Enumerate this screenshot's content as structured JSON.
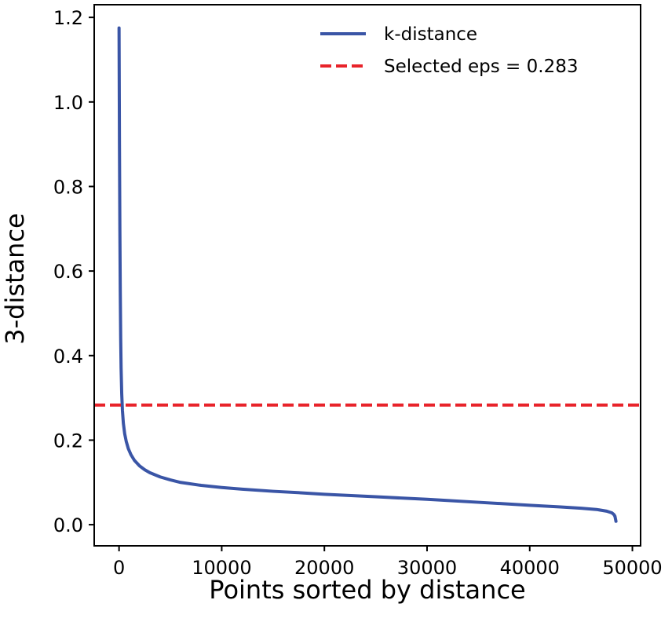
{
  "chart_data": {
    "type": "line",
    "title": "",
    "xlabel": "Points sorted by distance",
    "ylabel": "3-distance",
    "xlim": [
      -2420,
      50800
    ],
    "ylim": [
      -0.05,
      1.23
    ],
    "x_ticks": [
      0,
      10000,
      20000,
      30000,
      40000,
      50000
    ],
    "x_tick_labels": [
      "0",
      "10000",
      "20000",
      "30000",
      "40000",
      "50000"
    ],
    "y_ticks": [
      0.0,
      0.2,
      0.4,
      0.6,
      0.8,
      1.0,
      1.2
    ],
    "y_tick_labels": [
      "0.0",
      "0.2",
      "0.4",
      "0.6",
      "0.8",
      "1.0",
      "1.2"
    ],
    "grid": false,
    "legend_position": "top-right",
    "series": [
      {
        "name": "k-distance",
        "legend_label": "k-distance",
        "color": "#3a55a6",
        "style": "solid",
        "x": [
          0,
          40,
          80,
          120,
          160,
          200,
          260,
          330,
          420,
          550,
          700,
          900,
          1150,
          1500,
          2000,
          2500,
          3000,
          4000,
          5000,
          6000,
          8000,
          10000,
          12000,
          15000,
          18000,
          20000,
          25000,
          30000,
          35000,
          40000,
          43000,
          45000,
          46500,
          47500,
          48000,
          48200,
          48300,
          48350,
          48400
        ],
        "y": [
          1.175,
          0.9,
          0.7,
          0.55,
          0.44,
          0.37,
          0.31,
          0.27,
          0.24,
          0.215,
          0.197,
          0.18,
          0.166,
          0.152,
          0.139,
          0.13,
          0.123,
          0.113,
          0.106,
          0.1,
          0.093,
          0.088,
          0.084,
          0.079,
          0.075,
          0.072,
          0.066,
          0.06,
          0.053,
          0.046,
          0.042,
          0.039,
          0.036,
          0.032,
          0.028,
          0.024,
          0.02,
          0.014,
          0.008
        ]
      },
      {
        "name": "eps-line",
        "legend_label": "Selected eps = 0.283",
        "color": "#e8232a",
        "style": "dashed",
        "y_constant": 0.283
      }
    ]
  }
}
